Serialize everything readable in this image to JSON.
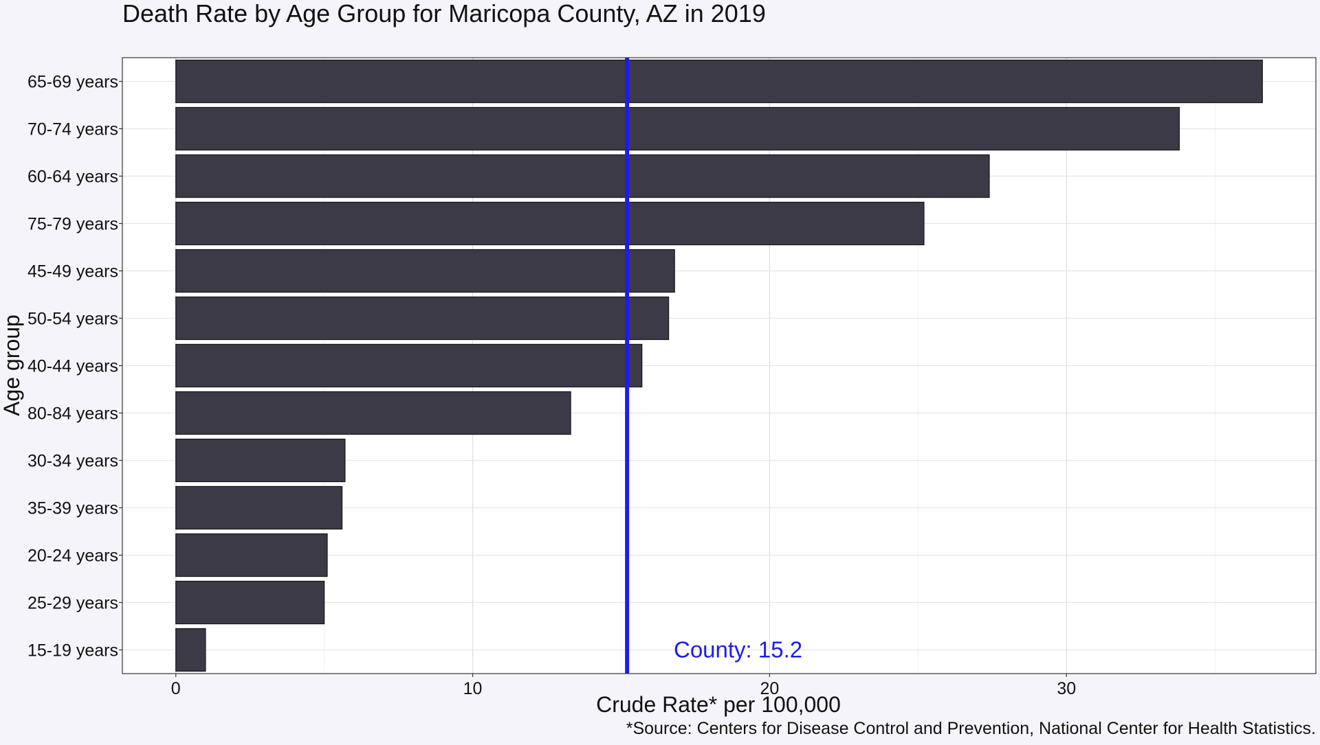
{
  "chart_data": {
    "type": "bar",
    "orientation": "horizontal",
    "title": "Death Rate by Age Group for Maricopa County, AZ in 2019",
    "xlabel": "Crude Rate* per 100,000",
    "ylabel": "Age group",
    "source_note": "*Source: Centers for Disease Control and Prevention, National Center for Health Statistics.",
    "categories": [
      "65-69 years",
      "70-74 years",
      "60-64 years",
      "75-79 years",
      "45-49 years",
      "50-54 years",
      "40-44 years",
      "80-84 years",
      "30-34 years",
      "35-39 years",
      "20-24 years",
      "25-29 years",
      "15-19 years"
    ],
    "values": [
      36.6,
      33.8,
      27.4,
      25.2,
      16.8,
      16.6,
      15.7,
      13.3,
      5.7,
      5.6,
      5.1,
      5.0,
      1.0
    ],
    "x_ticks": [
      0,
      10,
      20,
      30
    ],
    "xlim": [
      -1.8,
      38.4
    ],
    "grid": true,
    "reference_line": {
      "value": 15.2,
      "label": "County: 15.2",
      "color": "#1c1cf0"
    },
    "bar_color": "#3d3a47",
    "panel_background": "#ffffff",
    "page_background": "#f5f4fa"
  }
}
